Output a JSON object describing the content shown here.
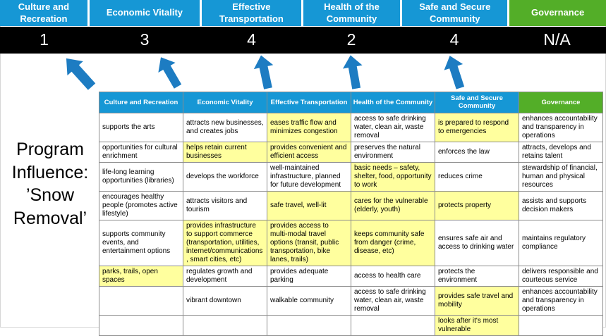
{
  "title": {
    "text": "Program Influence: ’Snow Removal’"
  },
  "colors": {
    "header_blue": "#1697d5",
    "header_green": "#53ae28",
    "score_bg": "#000000",
    "score_text": "#ffffff",
    "highlight_yellow": "#ffff9e",
    "arrow_blue": "#1d7cc2",
    "grid_border": "#8c8c8c"
  },
  "scoreboard": {
    "items": [
      {
        "label": "Culture and Recreation",
        "score": "1",
        "accent": "blue"
      },
      {
        "label": "Economic Vitality",
        "score": "3",
        "accent": "blue"
      },
      {
        "label": "Effective Transportation",
        "score": "4",
        "accent": "blue"
      },
      {
        "label": "Health of the Community",
        "score": "2",
        "accent": "blue"
      },
      {
        "label": "Safe and Secure Community",
        "score": "4",
        "accent": "blue"
      },
      {
        "label": "Governance",
        "score": "N/A",
        "accent": "green"
      }
    ]
  },
  "icons": {
    "mapping_arrow": "up-arrow",
    "count": 5
  },
  "matrix": {
    "headers": [
      {
        "label": "Culture and Recreation",
        "accent": "blue"
      },
      {
        "label": "Economic Vitality",
        "accent": "blue"
      },
      {
        "label": "Effective Transportation",
        "accent": "blue"
      },
      {
        "label": "Health of the Community",
        "accent": "blue"
      },
      {
        "label": "Safe and Secure Community",
        "accent": "blue"
      },
      {
        "label": "Governance",
        "accent": "green"
      }
    ],
    "rows": [
      [
        {
          "text": "supports the arts",
          "highlight": false
        },
        {
          "text": "attracts new businesses, and creates jobs",
          "highlight": false
        },
        {
          "text": "eases traffic flow and minimizes congestion",
          "highlight": true
        },
        {
          "text": "access to safe drinking water, clean air, waste removal",
          "highlight": false
        },
        {
          "text": "is prepared to respond to emergencies",
          "highlight": true
        },
        {
          "text": "enhances accountability and transparency in operations",
          "highlight": false
        }
      ],
      [
        {
          "text": "opportunities for cultural enrichment",
          "highlight": false
        },
        {
          "text": "helps retain current businesses",
          "highlight": true
        },
        {
          "text": "provides convenient and efficient access",
          "highlight": true
        },
        {
          "text": "preserves the natural environment",
          "highlight": false
        },
        {
          "text": "enforces the law",
          "highlight": false
        },
        {
          "text": "attracts, develops and retains talent",
          "highlight": false
        }
      ],
      [
        {
          "text": "life-long learning opportunities (libraries)",
          "highlight": false
        },
        {
          "text": "develops the workforce",
          "highlight": false
        },
        {
          "text": "well-maintained infrastructure, planned for future development",
          "highlight": false
        },
        {
          "text": "basic needs – safety, shelter, food, opportunity to work",
          "highlight": true
        },
        {
          "text": "reduces crime",
          "highlight": false
        },
        {
          "text": "stewardship of financial, human and physical resources",
          "highlight": false
        }
      ],
      [
        {
          "text": "encourages healthy people (promotes active lifestyle)",
          "highlight": false
        },
        {
          "text": "attracts visitors and tourism",
          "highlight": false
        },
        {
          "text": "safe travel, well-lit",
          "highlight": true
        },
        {
          "text": "cares for the vulnerable (elderly, youth)",
          "highlight": true
        },
        {
          "text": "protects property",
          "highlight": true
        },
        {
          "text": "assists and supports decision makers",
          "highlight": false
        }
      ],
      [
        {
          "text": "supports community events, and entertainment options",
          "highlight": false
        },
        {
          "text": "provides infrastructure to support commerce (transportation, utilities, internet/communications, smart cities, etc)",
          "highlight": true
        },
        {
          "text": "provides access to multi-modal travel options (transit, public transportation, bike lanes, trails)",
          "highlight": true
        },
        {
          "text": "keeps community safe from danger (crime, disease, etc)",
          "highlight": true
        },
        {
          "text": "ensures safe air and access to drinking water",
          "highlight": false
        },
        {
          "text": "maintains regulatory compliance",
          "highlight": false
        }
      ],
      [
        {
          "text": "parks, trails, open spaces",
          "highlight": true
        },
        {
          "text": "regulates growth and development",
          "highlight": false
        },
        {
          "text": "provides adequate parking",
          "highlight": false
        },
        {
          "text": "access to health care",
          "highlight": false
        },
        {
          "text": "protects the environment",
          "highlight": false
        },
        {
          "text": "delivers responsible and courteous service",
          "highlight": false
        }
      ],
      [
        {
          "text": "",
          "highlight": false
        },
        {
          "text": "vibrant downtown",
          "highlight": false
        },
        {
          "text": "walkable community",
          "highlight": false
        },
        {
          "text": "access to safe drinking water, clean air, waste removal",
          "highlight": false
        },
        {
          "text": "provides safe travel and mobility",
          "highlight": true
        },
        {
          "text": "enhances accountability and transparency in operations",
          "highlight": false
        }
      ],
      [
        {
          "text": "",
          "highlight": false
        },
        {
          "text": "",
          "highlight": false
        },
        {
          "text": "",
          "highlight": false
        },
        {
          "text": "",
          "highlight": false
        },
        {
          "text": "looks after it's most vulnerable",
          "highlight": true
        },
        {
          "text": "",
          "highlight": false
        }
      ]
    ]
  }
}
